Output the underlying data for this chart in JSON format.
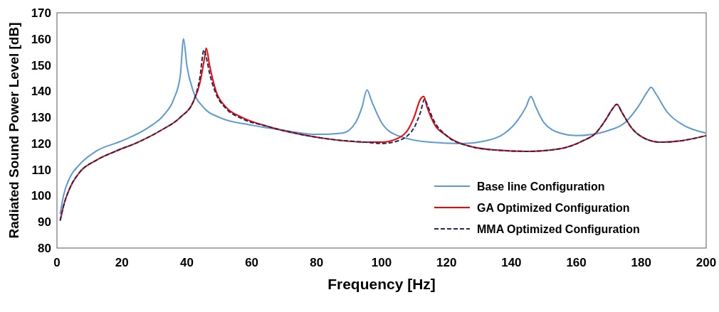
{
  "chart_data": {
    "type": "line",
    "xlabel": "Frequency [Hz]",
    "ylabel": "Radiated Sound Power Level [dB]",
    "xlim": [
      0,
      200
    ],
    "ylim": [
      80,
      170
    ],
    "xticks": [
      0,
      20,
      40,
      60,
      80,
      100,
      120,
      140,
      160,
      180,
      200
    ],
    "yticks": [
      80,
      90,
      100,
      110,
      120,
      130,
      140,
      150,
      160,
      170
    ],
    "grid": false,
    "legend": "bottom right",
    "series": [
      {
        "name": "Base line Configuration",
        "color": "#5b9bd5",
        "line_style": "solid",
        "x": [
          1,
          2,
          4,
          7,
          12,
          20,
          28,
          33,
          36,
          38,
          39,
          40,
          42,
          45,
          50,
          60,
          70,
          80,
          88,
          92,
          94,
          95.5,
          97,
          100,
          105,
          115,
          125,
          132,
          138,
          142,
          144.5,
          146,
          147.5,
          150,
          155,
          160,
          165,
          170,
          175,
          179,
          182,
          183,
          184.5,
          188,
          193,
          200
        ],
        "values": [
          93,
          100,
          107,
          112,
          117,
          121,
          126,
          131,
          137,
          146,
          160,
          150,
          140,
          134,
          130,
          127,
          125,
          123.5,
          124,
          128,
          134,
          140.5,
          136,
          128,
          123,
          120.5,
          120,
          121,
          124,
          129,
          134,
          138,
          134,
          128,
          124,
          123,
          123.5,
          125,
          128,
          134,
          140,
          141.5,
          139,
          132,
          127,
          124
        ]
      },
      {
        "name": "GA Optimized Configuration",
        "color": "#ff0000",
        "line_style": "solid",
        "x": [
          1,
          2,
          4,
          7,
          12,
          18,
          25,
          32,
          38,
          42,
          44,
          45.5,
          46,
          47,
          49,
          52,
          57,
          65,
          75,
          85,
          95,
          100,
          105,
          108,
          110,
          112,
          113,
          114,
          116,
          120,
          127,
          135,
          145,
          155,
          162,
          166,
          169,
          171,
          172.5,
          174,
          177,
          181,
          186,
          192,
          200
        ],
        "values": [
          90.5,
          96,
          103,
          109,
          113.5,
          117,
          120.5,
          125,
          130,
          136,
          143,
          153,
          156.5,
          150,
          140,
          134,
          130,
          126.5,
          123.5,
          121.5,
          120.5,
          120.5,
          122,
          125,
          130,
          137,
          138,
          134,
          128,
          123,
          119,
          117.5,
          117,
          118,
          121,
          124,
          129,
          133,
          135,
          132,
          126,
          122,
          120.5,
          121,
          123
        ]
      },
      {
        "name": "MMA Optimized Configuration",
        "color": "#1f2a5e",
        "line_style": "dashed",
        "x": [
          1,
          2,
          4,
          7,
          12,
          18,
          25,
          32,
          38,
          42,
          44,
          45.3,
          46,
          47,
          49,
          52,
          57,
          65,
          75,
          85,
          95,
          100,
          105,
          108,
          110,
          112,
          113.3,
          114,
          116,
          120,
          127,
          135,
          145,
          155,
          162,
          166,
          169,
          171,
          172.5,
          174,
          177,
          181,
          186,
          192,
          200
        ],
        "values": [
          90.5,
          96,
          103,
          109,
          113.5,
          117,
          120.5,
          125,
          130,
          136,
          145,
          155.8,
          153,
          147,
          139,
          133.5,
          129.5,
          126.5,
          123.5,
          121.5,
          120.5,
          120,
          121,
          123,
          126,
          132,
          137,
          135,
          129,
          123,
          119,
          117.5,
          117,
          118,
          121,
          124,
          129,
          133,
          135,
          132,
          126,
          122,
          120.5,
          121,
          123
        ]
      }
    ]
  }
}
